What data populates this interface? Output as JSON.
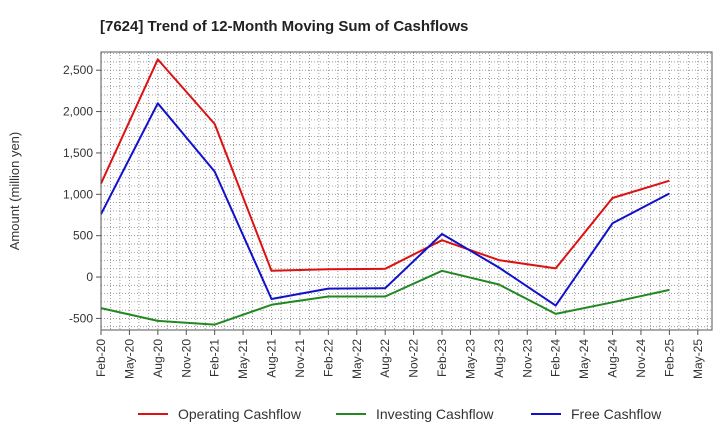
{
  "chart_data": {
    "type": "line",
    "title": "[7624]  Trend of 12-Month Moving Sum of Cashflows",
    "xlabel": "",
    "ylabel": "Amount (million yen)",
    "x_ticks": [
      "Feb-20",
      "May-20",
      "Aug-20",
      "Nov-20",
      "Feb-21",
      "May-21",
      "Aug-21",
      "Nov-21",
      "Feb-22",
      "May-22",
      "Aug-22",
      "Nov-22",
      "Feb-23",
      "May-23",
      "Aug-23",
      "Nov-23",
      "Feb-24",
      "May-24",
      "Aug-24",
      "Nov-24",
      "Feb-25",
      "May-25"
    ],
    "y_ticks": [
      2500,
      2000,
      1500,
      1000,
      500,
      0,
      -500
    ],
    "y_tick_labels": [
      "2,500",
      "2,000",
      "1,500",
      "1,000",
      "500",
      "0",
      "-500"
    ],
    "ylim": [
      -640,
      2720
    ],
    "grid": true,
    "legend_position": "bottom",
    "x": [
      "Feb-20",
      "Aug-20",
      "Feb-21",
      "Aug-21",
      "Feb-22",
      "Aug-22",
      "Feb-23",
      "Aug-23",
      "Feb-24",
      "Aug-24",
      "Feb-25"
    ],
    "series": [
      {
        "name": "Operating Cashflow",
        "color": "#dd1111",
        "values": [
          1130,
          2630,
          1850,
          75,
          95,
          100,
          445,
          205,
          105,
          955,
          1165
        ]
      },
      {
        "name": "Investing Cashflow",
        "color": "#228822",
        "values": [
          -375,
          -530,
          -575,
          -335,
          -235,
          -235,
          75,
          -90,
          -445,
          -305,
          -155
        ]
      },
      {
        "name": "Free Cashflow",
        "color": "#1111cc",
        "values": [
          760,
          2100,
          1275,
          -265,
          -140,
          -135,
          520,
          115,
          -345,
          650,
          1010
        ]
      }
    ]
  }
}
